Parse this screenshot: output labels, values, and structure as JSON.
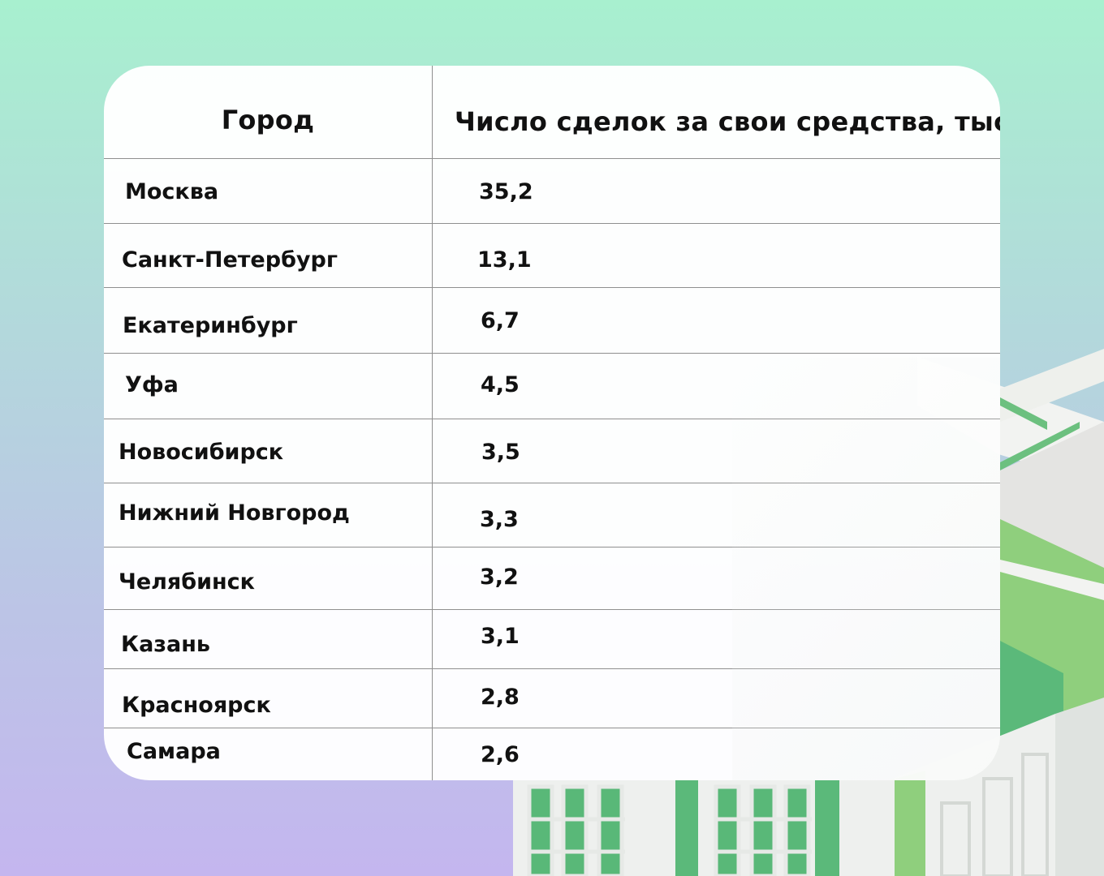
{
  "table": {
    "headers": {
      "city": "Город",
      "deals": "Число сделок за свои средства, тыс."
    },
    "rows": [
      {
        "city": "Москва",
        "value": "35,2"
      },
      {
        "city": "Санкт-Петербург",
        "value": "13,1"
      },
      {
        "city": "Екатеринбург",
        "value": "6,7"
      },
      {
        "city": "Уфа",
        "value": "4,5"
      },
      {
        "city": "Новосибирск",
        "value": "3,5"
      },
      {
        "city": "Нижний Новгород",
        "value": "3,3"
      },
      {
        "city": "Челябинск",
        "value": "3,2"
      },
      {
        "city": "Казань",
        "value": "3,1"
      },
      {
        "city": "Красноярск",
        "value": "2,8"
      },
      {
        "city": "Самара",
        "value": "2,6"
      }
    ]
  },
  "colors": {
    "background_top": "#a8f0cf",
    "background_bottom": "#c4b6ef",
    "building_green": "#5bb97a",
    "building_light_green": "#8fcf7d",
    "card": "#ffffff",
    "divider": "#8f8f8f",
    "text": "#111111"
  }
}
